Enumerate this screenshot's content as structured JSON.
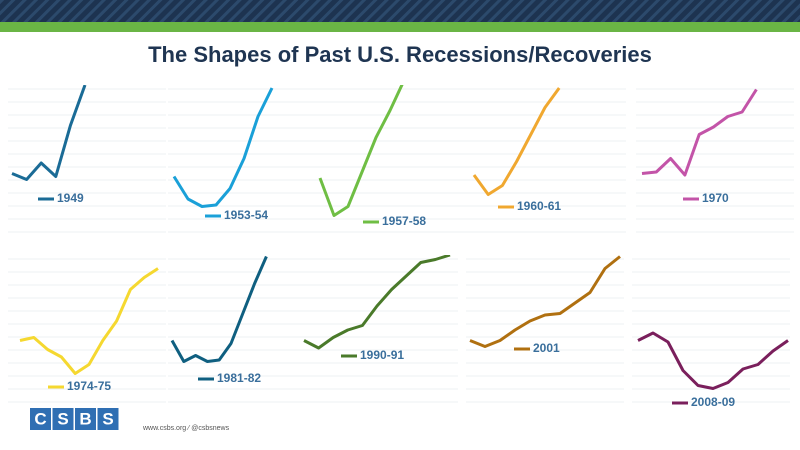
{
  "title": "The Shapes of Past U.S. Recessions/Recoveries",
  "chart_data": [
    {
      "type": "line",
      "ylim": [
        0,
        100
      ],
      "series": [
        {
          "name": "1949",
          "color": "#1a6b96",
          "values": [
            41,
            37,
            48,
            39,
            73,
            100
          ]
        }
      ]
    },
    {
      "type": "line",
      "ylim": [
        0,
        100
      ],
      "series": [
        {
          "name": "1953-54",
          "color": "#1aa0d8",
          "values": [
            39,
            24,
            19,
            20,
            31,
            51,
            79,
            98
          ]
        }
      ]
    },
    {
      "type": "line",
      "ylim": [
        0,
        100
      ],
      "series": [
        {
          "name": "1957-58",
          "color": "#6fbe44",
          "values": [
            38,
            13,
            19,
            42,
            65,
            83,
            103
          ]
        }
      ]
    },
    {
      "type": "line",
      "ylim": [
        0,
        100
      ],
      "series": [
        {
          "name": "1960-61",
          "color": "#f0a830",
          "values": [
            40,
            27,
            33,
            49,
            67,
            85,
            98
          ]
        }
      ]
    },
    {
      "type": "line",
      "ylim": [
        0,
        100
      ],
      "series": [
        {
          "name": "1970",
          "color": "#c354a8",
          "values": [
            41,
            42,
            51,
            40,
            67,
            72,
            79,
            82,
            97
          ]
        }
      ]
    },
    {
      "type": "line",
      "ylim": [
        0,
        100
      ],
      "series": [
        {
          "name": "1974-75",
          "color": "#f5d830",
          "values": [
            43,
            45,
            37,
            32,
            21,
            27,
            43,
            56,
            77,
            85,
            91
          ]
        }
      ]
    },
    {
      "type": "line",
      "ylim": [
        0,
        100
      ],
      "series": [
        {
          "name": "1981-82",
          "color": "#0f5f80",
          "values": [
            43,
            29,
            33,
            29,
            30,
            41,
            61,
            81,
            99
          ]
        }
      ]
    },
    {
      "type": "line",
      "ylim": [
        0,
        100
      ],
      "series": [
        {
          "name": "1990-91",
          "color": "#4a7a2a",
          "values": [
            43,
            38,
            45,
            50,
            53,
            66,
            77,
            86,
            95,
            97,
            100
          ]
        }
      ]
    },
    {
      "type": "line",
      "ylim": [
        0,
        100
      ],
      "series": [
        {
          "name": "2001",
          "color": "#b07010",
          "values": [
            43,
            39,
            43,
            50,
            56,
            60,
            61,
            68,
            75,
            91,
            99
          ]
        }
      ]
    },
    {
      "type": "line",
      "ylim": [
        0,
        100
      ],
      "series": [
        {
          "name": "2008-09",
          "color": "#7a1f5c",
          "values": [
            43,
            48,
            42,
            23,
            13,
            11,
            15,
            24,
            27,
            36,
            43
          ]
        }
      ]
    }
  ],
  "logo": [
    "C",
    "S",
    "B",
    "S"
  ],
  "footer": "www.csbs.org ⁄ @csbsnews"
}
